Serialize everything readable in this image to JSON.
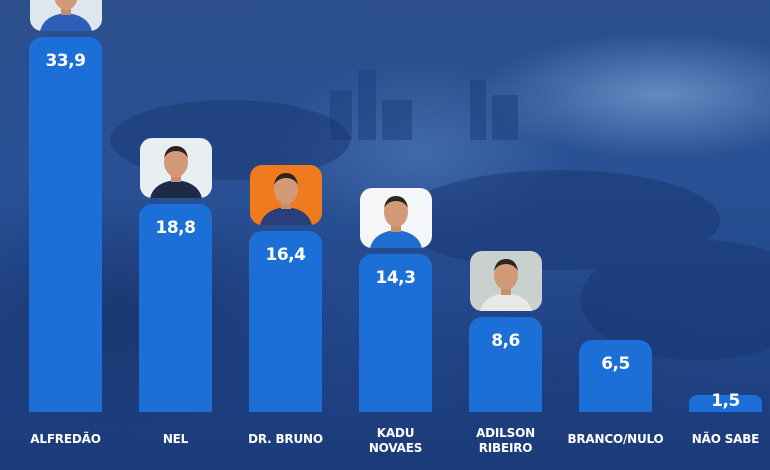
{
  "chart_data": {
    "type": "bar",
    "categories": [
      "ALFREDÃO",
      "NEL",
      "DR. BRUNO",
      "KADU\nNOVAES",
      "ADILSON\nRIBEIRO",
      "BRANCO/NULO",
      "NÃO SABE"
    ],
    "values": [
      33.9,
      18.8,
      16.4,
      14.3,
      8.6,
      6.5,
      1.5
    ],
    "value_labels": [
      "33,9",
      "18,8",
      "16,4",
      "14,3",
      "8,6",
      "6,5",
      "1,5"
    ],
    "bar_color": "#1c6fd6",
    "title": "",
    "xlabel": "",
    "ylabel": "",
    "grid": false,
    "legend": "none",
    "photos": [
      {
        "category": "ALFREDÃO",
        "icon": "candidate-photo",
        "bg": "#dfe6ee",
        "shirt": "#2d5fb8"
      },
      {
        "category": "NEL",
        "icon": "candidate-photo",
        "bg": "#e9eef3",
        "shirt": "#1e2a44"
      },
      {
        "category": "DR. BRUNO",
        "icon": "candidate-photo",
        "bg": "#f07a1e",
        "shirt": "#2a3f7a"
      },
      {
        "category": "KADU\nNOVAES",
        "icon": "candidate-photo",
        "bg": "#f4f6f8",
        "shirt": "#1f6fd0"
      },
      {
        "category": "ADILSON\nRIBEIRO",
        "icon": "candidate-photo",
        "bg": "#c9d1cf",
        "shirt": "#e8e8e8"
      }
    ]
  }
}
